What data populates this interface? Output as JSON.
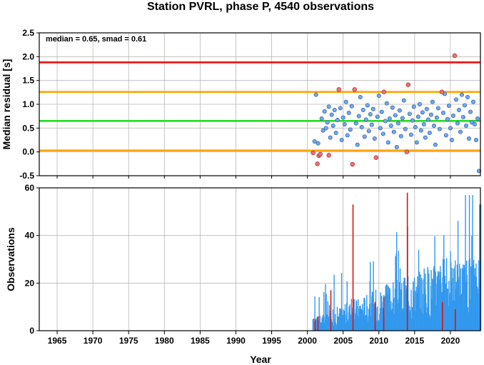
{
  "chart_data": [
    {
      "type": "scatter",
      "title": "Station PVRL, phase P, 4540 observations",
      "ylabel": "Median residual [s]",
      "xlim": [
        1962.5,
        2024.2
      ],
      "ylim": [
        -0.5,
        2.5
      ],
      "y_ticks": [
        "-0.5",
        "0.0",
        "0.5",
        "1.0",
        "1.5",
        "2.0",
        "2.5"
      ],
      "y_tick_values": [
        -0.5,
        0.0,
        0.5,
        1.0,
        1.5,
        2.0,
        2.5
      ],
      "x_tick_values": [
        1965,
        1970,
        1975,
        1980,
        1985,
        1990,
        1995,
        2000,
        2005,
        2010,
        2015,
        2020
      ],
      "grid": true,
      "annotation": "median = 0.65, smad = 0.61",
      "reference_lines": [
        {
          "y": 1.88,
          "color": "#ee1111"
        },
        {
          "y": 1.26,
          "color": "#ffa500"
        },
        {
          "y": 0.65,
          "color": "#22dd22"
        },
        {
          "y": 0.03,
          "color": "#ffa500"
        }
      ],
      "outliers": [
        {
          "x": 2000.8,
          "y": -0.02
        },
        {
          "x": 2001.4,
          "y": -0.25
        },
        {
          "x": 2001.6,
          "y": -0.08
        },
        {
          "x": 2001.8,
          "y": -0.05
        },
        {
          "x": 2003.0,
          "y": -0.07
        },
        {
          "x": 2004.4,
          "y": 1.31
        },
        {
          "x": 2006.3,
          "y": -0.26
        },
        {
          "x": 2006.6,
          "y": 1.31
        },
        {
          "x": 2009.6,
          "y": -0.12
        },
        {
          "x": 2010.7,
          "y": 1.26
        },
        {
          "x": 2013.9,
          "y": 0.0
        },
        {
          "x": 2014.1,
          "y": 1.41
        },
        {
          "x": 2018.8,
          "y": 1.26
        },
        {
          "x": 2020.6,
          "y": 2.02
        }
      ],
      "points": [
        {
          "x": 2001.0,
          "y": 0.22
        },
        {
          "x": 2001.2,
          "y": 1.2
        },
        {
          "x": 2001.5,
          "y": 0.18
        },
        {
          "x": 2002.0,
          "y": 0.7
        },
        {
          "x": 2002.2,
          "y": 0.45
        },
        {
          "x": 2002.4,
          "y": 0.85
        },
        {
          "x": 2002.6,
          "y": 0.5
        },
        {
          "x": 2002.8,
          "y": 0.62
        },
        {
          "x": 2003.0,
          "y": 0.95
        },
        {
          "x": 2003.2,
          "y": 0.3
        },
        {
          "x": 2003.4,
          "y": 0.78
        },
        {
          "x": 2003.6,
          "y": 0.55
        },
        {
          "x": 2003.8,
          "y": 0.88
        },
        {
          "x": 2004.0,
          "y": 0.4
        },
        {
          "x": 2004.2,
          "y": 0.67
        },
        {
          "x": 2004.6,
          "y": 0.92
        },
        {
          "x": 2004.8,
          "y": 0.25
        },
        {
          "x": 2005.0,
          "y": 0.72
        },
        {
          "x": 2005.2,
          "y": 0.58
        },
        {
          "x": 2005.4,
          "y": 1.05
        },
        {
          "x": 2005.6,
          "y": 0.35
        },
        {
          "x": 2005.8,
          "y": 0.82
        },
        {
          "x": 2006.0,
          "y": 0.47
        },
        {
          "x": 2006.2,
          "y": 0.96
        },
        {
          "x": 2006.8,
          "y": 0.6
        },
        {
          "x": 2007.0,
          "y": 0.15
        },
        {
          "x": 2007.2,
          "y": 0.75
        },
        {
          "x": 2007.4,
          "y": 1.15
        },
        {
          "x": 2007.6,
          "y": 0.52
        },
        {
          "x": 2007.8,
          "y": 0.88
        },
        {
          "x": 2008.0,
          "y": 0.32
        },
        {
          "x": 2008.2,
          "y": 0.68
        },
        {
          "x": 2008.4,
          "y": 0.98
        },
        {
          "x": 2008.6,
          "y": 0.44
        },
        {
          "x": 2008.8,
          "y": 0.79
        },
        {
          "x": 2009.0,
          "y": 0.57
        },
        {
          "x": 2009.2,
          "y": 0.9
        },
        {
          "x": 2009.4,
          "y": 0.28
        },
        {
          "x": 2009.8,
          "y": 0.74
        },
        {
          "x": 2010.0,
          "y": 1.18
        },
        {
          "x": 2010.2,
          "y": 0.5
        },
        {
          "x": 2010.4,
          "y": 0.84
        },
        {
          "x": 2010.6,
          "y": 0.38
        },
        {
          "x": 2010.9,
          "y": 0.65
        },
        {
          "x": 2011.1,
          "y": 1.02
        },
        {
          "x": 2011.3,
          "y": 0.2
        },
        {
          "x": 2011.5,
          "y": 0.7
        },
        {
          "x": 2011.7,
          "y": 0.55
        },
        {
          "x": 2011.9,
          "y": 0.93
        },
        {
          "x": 2012.1,
          "y": 0.42
        },
        {
          "x": 2012.3,
          "y": 0.77
        },
        {
          "x": 2012.5,
          "y": 0.1
        },
        {
          "x": 2012.7,
          "y": 0.6
        },
        {
          "x": 2012.9,
          "y": 0.87
        },
        {
          "x": 2013.1,
          "y": 0.33
        },
        {
          "x": 2013.3,
          "y": 0.71
        },
        {
          "x": 2013.5,
          "y": 1.08
        },
        {
          "x": 2013.7,
          "y": 0.48
        },
        {
          "x": 2014.3,
          "y": 0.8
        },
        {
          "x": 2014.5,
          "y": 0.36
        },
        {
          "x": 2014.7,
          "y": 0.66
        },
        {
          "x": 2014.9,
          "y": 0.95
        },
        {
          "x": 2015.1,
          "y": 0.52
        },
        {
          "x": 2015.3,
          "y": 0.2
        },
        {
          "x": 2015.5,
          "y": 0.74
        },
        {
          "x": 2015.7,
          "y": 1.0
        },
        {
          "x": 2015.9,
          "y": 0.45
        },
        {
          "x": 2016.1,
          "y": 0.83
        },
        {
          "x": 2016.3,
          "y": 0.58
        },
        {
          "x": 2016.5,
          "y": 0.3
        },
        {
          "x": 2016.7,
          "y": 0.9
        },
        {
          "x": 2016.9,
          "y": 0.68
        },
        {
          "x": 2017.1,
          "y": 0.4
        },
        {
          "x": 2017.3,
          "y": 0.78
        },
        {
          "x": 2017.5,
          "y": 1.05
        },
        {
          "x": 2017.7,
          "y": 0.55
        },
        {
          "x": 2017.9,
          "y": 0.15
        },
        {
          "x": 2018.1,
          "y": 0.72
        },
        {
          "x": 2018.3,
          "y": 0.92
        },
        {
          "x": 2018.5,
          "y": 0.48
        },
        {
          "x": 2019.0,
          "y": 0.82
        },
        {
          "x": 2019.2,
          "y": 1.22
        },
        {
          "x": 2019.4,
          "y": 0.35
        },
        {
          "x": 2019.6,
          "y": 0.69
        },
        {
          "x": 2019.8,
          "y": 0.97
        },
        {
          "x": 2020.0,
          "y": 0.5
        },
        {
          "x": 2020.2,
          "y": 0.25
        },
        {
          "x": 2020.4,
          "y": 0.76
        },
        {
          "x": 2020.8,
          "y": 1.1
        },
        {
          "x": 2021.0,
          "y": 0.6
        },
        {
          "x": 2021.2,
          "y": 0.88
        },
        {
          "x": 2021.4,
          "y": 0.42
        },
        {
          "x": 2021.6,
          "y": 1.2
        },
        {
          "x": 2021.8,
          "y": 0.73
        },
        {
          "x": 2022.0,
          "y": 0.98
        },
        {
          "x": 2022.2,
          "y": 0.55
        },
        {
          "x": 2022.4,
          "y": 1.15
        },
        {
          "x": 2022.6,
          "y": 0.28
        },
        {
          "x": 2022.8,
          "y": 0.84
        },
        {
          "x": 2023.0,
          "y": 0.62
        },
        {
          "x": 2023.2,
          "y": 1.05
        },
        {
          "x": 2023.4,
          "y": 0.58
        },
        {
          "x": 2023.6,
          "y": 0.25
        },
        {
          "x": 2023.8,
          "y": 0.7
        },
        {
          "x": 2024.0,
          "y": -0.4
        }
      ]
    },
    {
      "type": "bar",
      "xlabel": "Year",
      "ylabel": "Observations",
      "xlim": [
        1962.5,
        2024.2
      ],
      "ylim": [
        0,
        60
      ],
      "y_ticks": [
        "0",
        "20",
        "40",
        "60"
      ],
      "y_tick_values": [
        0,
        20,
        40,
        60
      ],
      "x_ticks": [
        "1965",
        "1970",
        "1975",
        "1980",
        "1985",
        "1990",
        "1995",
        "2000",
        "2005",
        "2010",
        "2015",
        "2020"
      ],
      "x_tick_values": [
        1965,
        1970,
        1975,
        1980,
        1985,
        1990,
        1995,
        2000,
        2005,
        2010,
        2015,
        2020
      ],
      "grid": true,
      "colors": {
        "normal": "#3399ee",
        "outlier": "#dd1111"
      },
      "outlier_bars": [
        {
          "x": 2001.0,
          "count": 5
        },
        {
          "x": 2001.4,
          "count": 6
        },
        {
          "x": 2003.2,
          "count": 17
        },
        {
          "x": 2006.3,
          "count": 53
        },
        {
          "x": 2009.4,
          "count": 12
        },
        {
          "x": 2010.6,
          "count": 14
        },
        {
          "x": 2013.9,
          "count": 58
        },
        {
          "x": 2018.8,
          "count": 12
        },
        {
          "x": 2020.6,
          "count": 9
        }
      ]
    }
  ]
}
